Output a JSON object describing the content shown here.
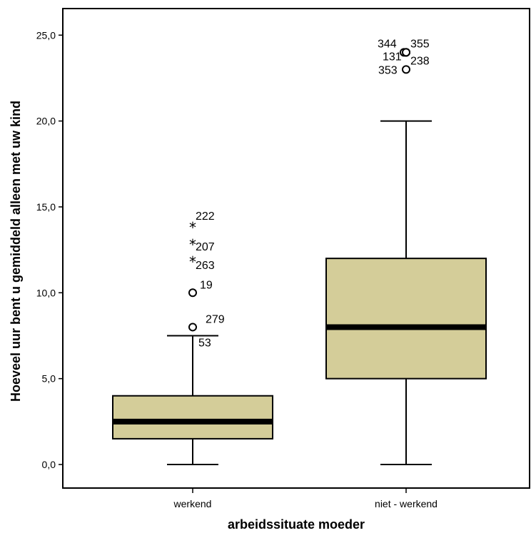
{
  "chart_data": {
    "type": "box",
    "xlabel": "arbeidssituate moeder",
    "ylabel": "Hoeveel uur bent u gemiddeld alleen met uw kind",
    "ylim": [
      -1.5,
      26.5
    ],
    "yticks": [
      "0,0",
      "5,0",
      "10,0",
      "15,0",
      "20,0",
      "25,0"
    ],
    "ytick_values": [
      0,
      5,
      10,
      15,
      20,
      25
    ],
    "box_color": "#d4cd99",
    "categories": [
      "werkend",
      "niet - werkend"
    ],
    "groups": [
      {
        "category": "werkend",
        "whisker_low": 0,
        "q1": 1.5,
        "median": 2.5,
        "q3": 4,
        "whisker_high": 7.5,
        "outliers": [
          {
            "value": 10,
            "label": "19",
            "marker": "circle"
          },
          {
            "value": 8,
            "label": "279",
            "marker": "circle"
          },
          {
            "value": 7.5,
            "label": "53",
            "marker": "circle"
          }
        ],
        "extremes": [
          {
            "value": 14,
            "label": "222",
            "marker": "star"
          },
          {
            "value": 13,
            "label": "207",
            "marker": "star"
          },
          {
            "value": 12,
            "label": "263",
            "marker": "star"
          }
        ]
      },
      {
        "category": "niet - werkend",
        "whisker_low": 0,
        "q1": 5,
        "median": 8,
        "q3": 12,
        "whisker_high": 20,
        "outliers": [
          {
            "value": 24,
            "label": "344",
            "marker": "circle"
          },
          {
            "value": 24,
            "label": "355",
            "marker": "circle"
          },
          {
            "value": 24,
            "label": "131",
            "marker": "circle"
          },
          {
            "value": 24,
            "label": "238",
            "marker": "circle"
          },
          {
            "value": 23,
            "label": "353",
            "marker": "circle"
          }
        ],
        "extremes": []
      }
    ]
  }
}
